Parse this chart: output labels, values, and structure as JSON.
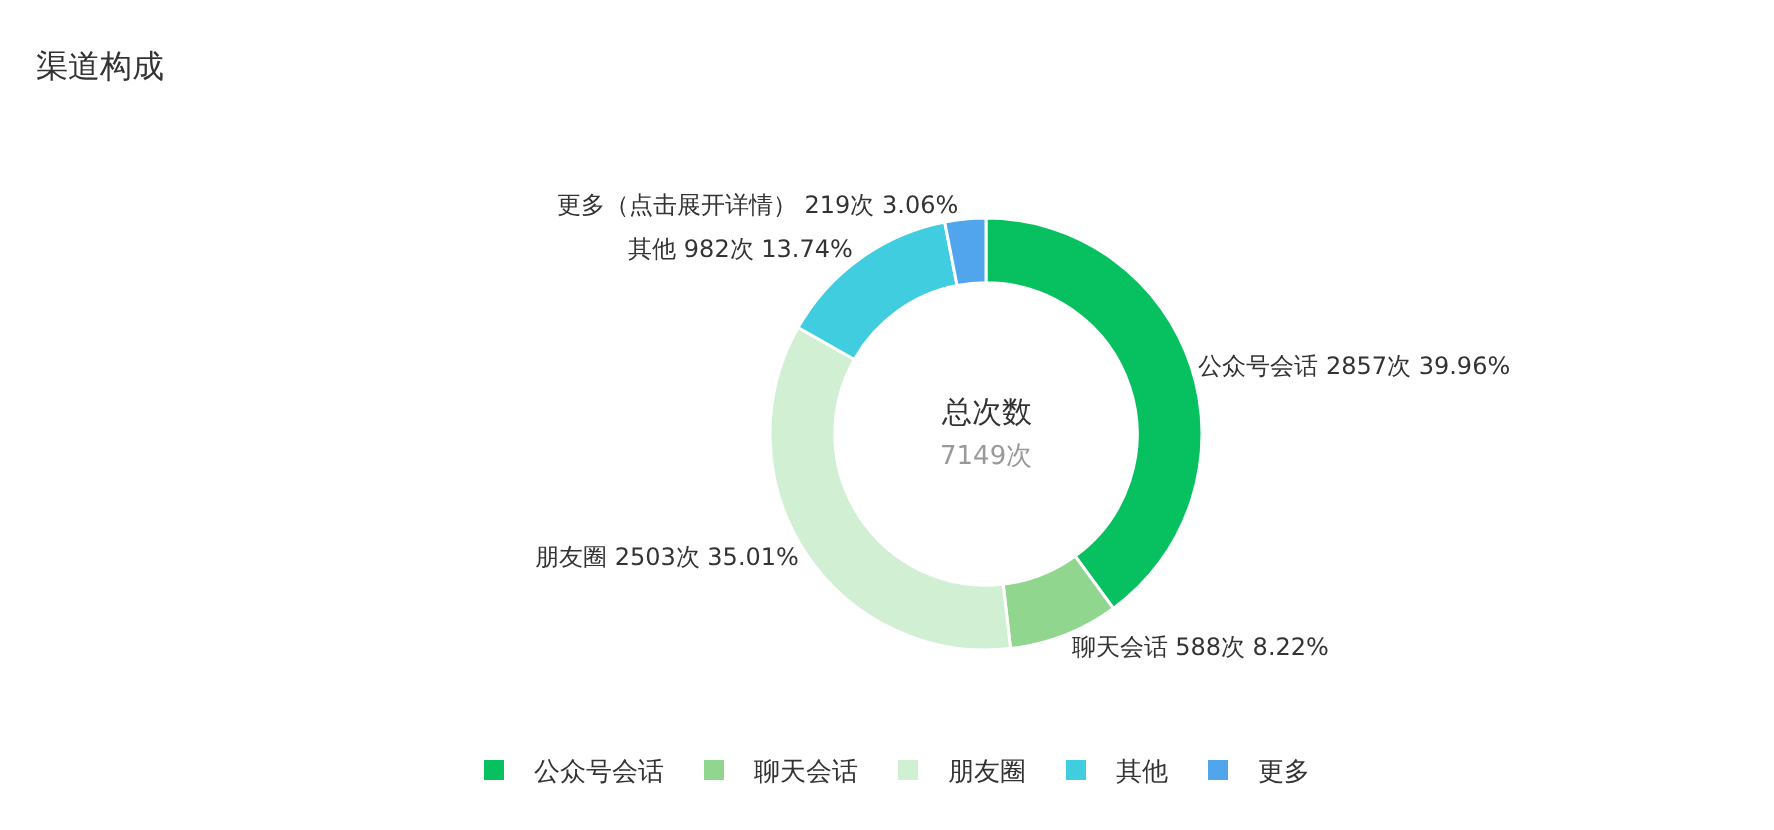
{
  "chart_data": {
    "type": "donut",
    "title": "渠道构成",
    "categories": [
      "公众号会话",
      "聊天会话",
      "朋友圈",
      "其他",
      "更多"
    ],
    "values": [
      2857,
      588,
      2503,
      982,
      219
    ],
    "colors": [
      "#07c160",
      "#91d68f",
      "#d1efd3",
      "#40cde0",
      "#51a5ec"
    ],
    "value_labels": [
      "公众号会话 2857次 39.96%",
      "聊天会话 588次 8.22%",
      "朋友圈 2503次 35.01%",
      "其他 982次 13.74%",
      "更多（点击展开详情） 219次 3.06%"
    ],
    "annotations": [
      "总次数",
      "7149次"
    ],
    "legend": "bottom"
  }
}
